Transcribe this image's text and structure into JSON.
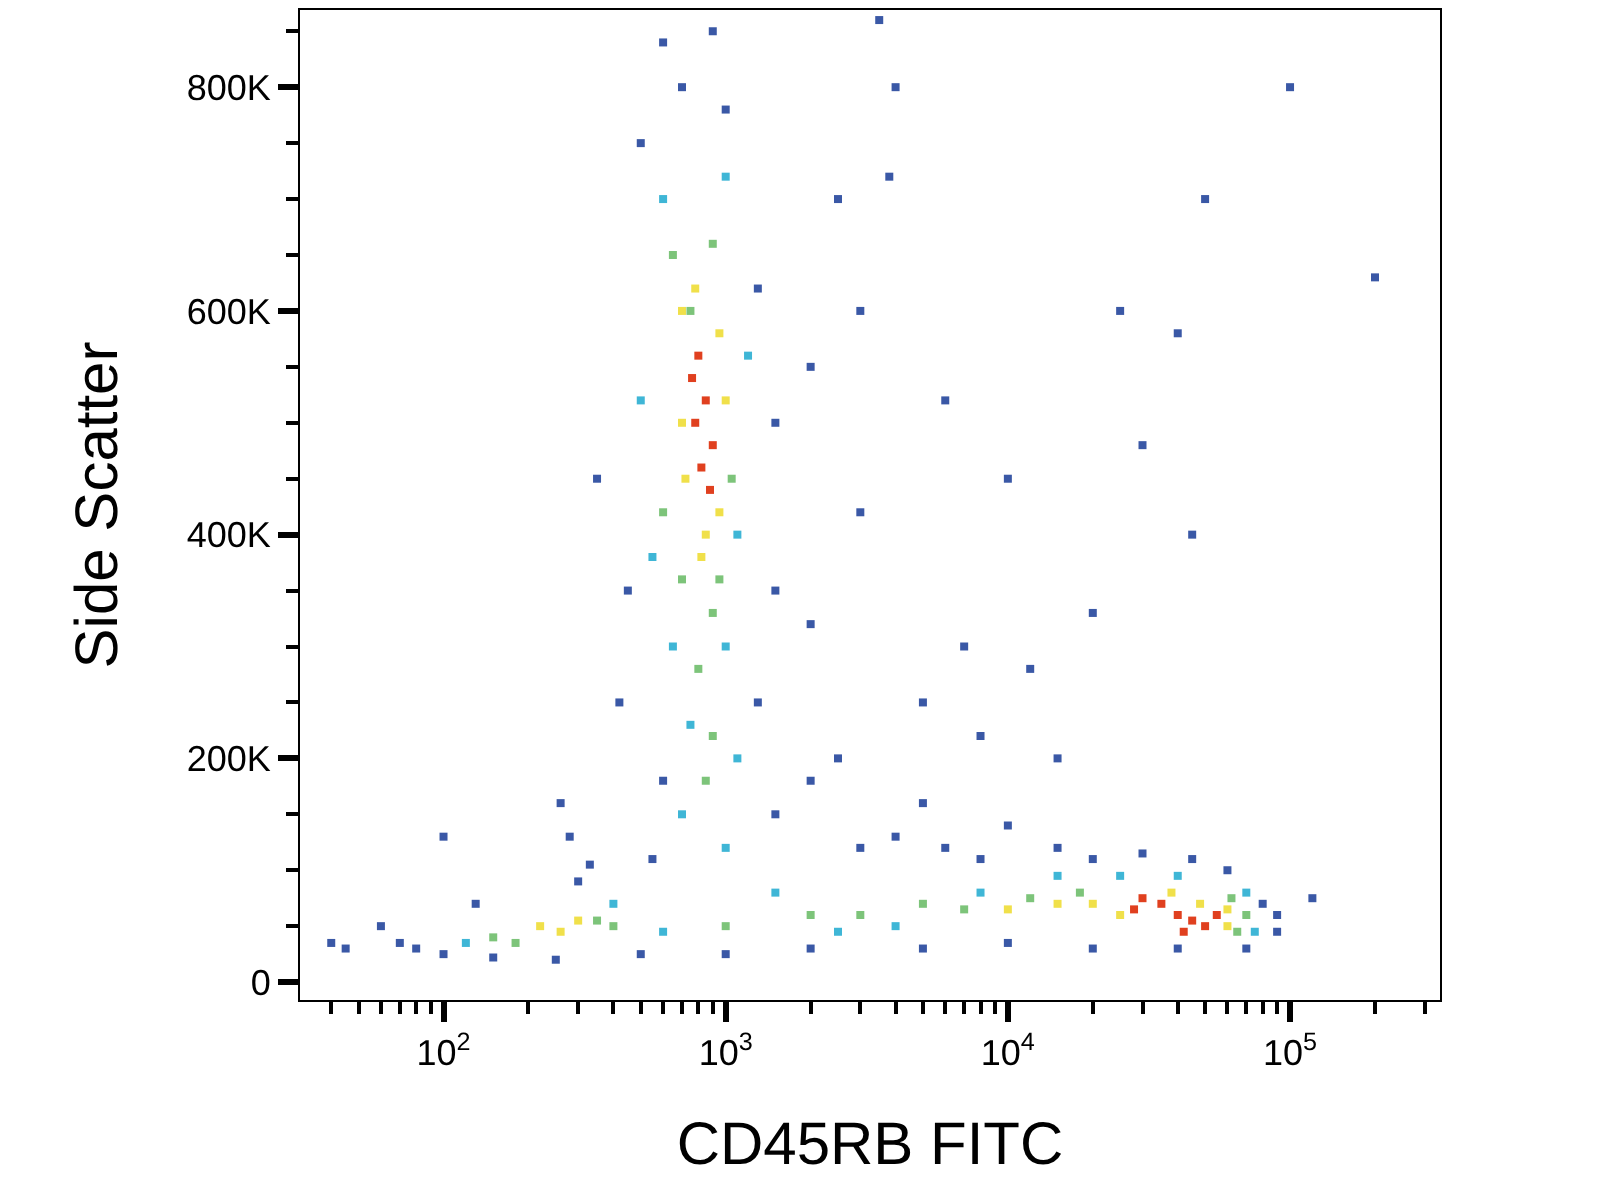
{
  "chart_data": {
    "type": "scatter",
    "xlabel": "CD45RB FITC",
    "ylabel": "Side Scatter",
    "log": "x",
    "marker": "square",
    "xlim": [
      31,
      340000
    ],
    "ylim": [
      -16000,
      869000
    ],
    "xticks": [
      {
        "value": 40,
        "label": null
      },
      {
        "value": 50,
        "label": null
      },
      {
        "value": 60,
        "label": null
      },
      {
        "value": 70,
        "label": null
      },
      {
        "value": 80,
        "label": null
      },
      {
        "value": 90,
        "label": null
      },
      {
        "value": 100,
        "label": "10$^{2}$"
      },
      {
        "value": 200,
        "label": null
      },
      {
        "value": 300,
        "label": null
      },
      {
        "value": 400,
        "label": null
      },
      {
        "value": 500,
        "label": null
      },
      {
        "value": 600,
        "label": null
      },
      {
        "value": 700,
        "label": null
      },
      {
        "value": 800,
        "label": null
      },
      {
        "value": 900,
        "label": null
      },
      {
        "value": 1000,
        "label": "10$^{3}$"
      },
      {
        "value": 2000,
        "label": null
      },
      {
        "value": 3000,
        "label": null
      },
      {
        "value": 4000,
        "label": null
      },
      {
        "value": 5000,
        "label": null
      },
      {
        "value": 6000,
        "label": null
      },
      {
        "value": 7000,
        "label": null
      },
      {
        "value": 8000,
        "label": null
      },
      {
        "value": 9000,
        "label": null
      },
      {
        "value": 10000,
        "label": "10$^{4}$"
      },
      {
        "value": 20000,
        "label": null
      },
      {
        "value": 30000,
        "label": null
      },
      {
        "value": 40000,
        "label": null
      },
      {
        "value": 50000,
        "label": null
      },
      {
        "value": 60000,
        "label": null
      },
      {
        "value": 70000,
        "label": null
      },
      {
        "value": 80000,
        "label": null
      },
      {
        "value": 90000,
        "label": null
      },
      {
        "value": 100000,
        "label": "10$^{5}$"
      },
      {
        "value": 200000,
        "label": null
      },
      {
        "value": 300000,
        "label": null
      }
    ],
    "yticks": [
      {
        "value": 0,
        "label": "0"
      },
      {
        "value": 50000,
        "label": null
      },
      {
        "value": 100000,
        "label": null
      },
      {
        "value": 150000,
        "label": null
      },
      {
        "value": 200000,
        "label": "200K"
      },
      {
        "value": 250000,
        "label": null
      },
      {
        "value": 300000,
        "label": null
      },
      {
        "value": 350000,
        "label": null
      },
      {
        "value": 400000,
        "label": "400K"
      },
      {
        "value": 450000,
        "label": null
      },
      {
        "value": 500000,
        "label": null
      },
      {
        "value": 550000,
        "label": null
      },
      {
        "value": 600000,
        "label": "600K"
      },
      {
        "value": 650000,
        "label": null
      },
      {
        "value": 700000,
        "label": null
      },
      {
        "value": 750000,
        "label": null
      },
      {
        "value": 800000,
        "label": "800K"
      },
      {
        "value": 850000,
        "label": null
      }
    ],
    "series": [
      {
        "color": "#3a58a6",
        "x": [
          500,
          700,
          1000,
          600,
          900,
          3500,
          4000,
          3800,
          450,
          1300,
          1500,
          420,
          1300,
          600,
          1500,
          2000,
          3000,
          2500,
          4000,
          5000,
          6000,
          8000,
          10000,
          15000,
          20000,
          30000,
          45000,
          60000,
          80000,
          90000,
          70000,
          40000,
          20000,
          10000,
          5000,
          2000,
          1000,
          500,
          250,
          150,
          100,
          80,
          70,
          45,
          40,
          60,
          130,
          100,
          260,
          280,
          330,
          5000,
          7000,
          12000,
          20000,
          30000,
          25000,
          40000,
          10000,
          6000,
          3000,
          2500,
          45000,
          50000,
          200000,
          100000,
          2000,
          3000,
          8000,
          15000,
          2000,
          300,
          550,
          90000,
          120000,
          1500,
          350
        ],
        "values": [
          750000,
          800000,
          780000,
          840000,
          850000,
          860000,
          800000,
          720000,
          350000,
          620000,
          500000,
          250000,
          250000,
          180000,
          150000,
          180000,
          120000,
          200000,
          130000,
          160000,
          120000,
          110000,
          140000,
          120000,
          110000,
          115000,
          110000,
          100000,
          70000,
          45000,
          30000,
          30000,
          30000,
          35000,
          30000,
          30000,
          25000,
          25000,
          20000,
          22000,
          25000,
          30000,
          35000,
          30000,
          35000,
          50000,
          70000,
          130000,
          160000,
          130000,
          105000,
          250000,
          300000,
          280000,
          330000,
          480000,
          600000,
          580000,
          450000,
          520000,
          420000,
          700000,
          400000,
          700000,
          630000,
          800000,
          550000,
          600000,
          220000,
          200000,
          320000,
          90000,
          110000,
          60000,
          75000,
          350000,
          450000
        ]
      },
      {
        "color": "#3fb6d6",
        "x": [
          600,
          1000,
          550,
          1100,
          650,
          1000,
          750,
          1100,
          700,
          1000,
          120,
          400,
          600,
          1500,
          2500,
          4000,
          8000,
          15000,
          25000,
          40000,
          70000,
          75000,
          500,
          1200
        ],
        "values": [
          700000,
          720000,
          380000,
          400000,
          300000,
          300000,
          230000,
          200000,
          150000,
          120000,
          35000,
          70000,
          45000,
          80000,
          45000,
          50000,
          80000,
          95000,
          95000,
          95000,
          80000,
          45000,
          520000,
          560000
        ]
      },
      {
        "color": "#7dc47a",
        "x": [
          650,
          900,
          600,
          1050,
          700,
          950,
          800,
          900,
          850,
          150,
          180,
          350,
          400,
          1000,
          2000,
          3000,
          5000,
          7000,
          12000,
          18000,
          65000,
          70000,
          62000,
          900,
          750
        ],
        "values": [
          650000,
          660000,
          420000,
          450000,
          360000,
          360000,
          280000,
          220000,
          180000,
          40000,
          35000,
          55000,
          50000,
          50000,
          60000,
          60000,
          70000,
          65000,
          75000,
          80000,
          45000,
          60000,
          75000,
          330000,
          600000
        ]
      },
      {
        "color": "#f0e04a",
        "x": [
          700,
          950,
          720,
          950,
          850,
          700,
          1000,
          220,
          260,
          300,
          20000,
          25000,
          60000,
          48000,
          38000,
          15000,
          10000,
          820,
          780,
          60000
        ],
        "values": [
          600000,
          580000,
          450000,
          420000,
          400000,
          500000,
          520000,
          50000,
          45000,
          55000,
          70000,
          60000,
          50000,
          70000,
          80000,
          70000,
          65000,
          380000,
          620000,
          65000
        ]
      },
      {
        "color": "#e0401f",
        "x": [
          800,
          850,
          780,
          900,
          820,
          760,
          880,
          30000,
          35000,
          40000,
          45000,
          50000,
          42000,
          28000,
          55000
        ],
        "values": [
          560000,
          520000,
          500000,
          480000,
          460000,
          540000,
          440000,
          75000,
          70000,
          60000,
          55000,
          50000,
          45000,
          65000,
          60000
        ]
      }
    ]
  }
}
